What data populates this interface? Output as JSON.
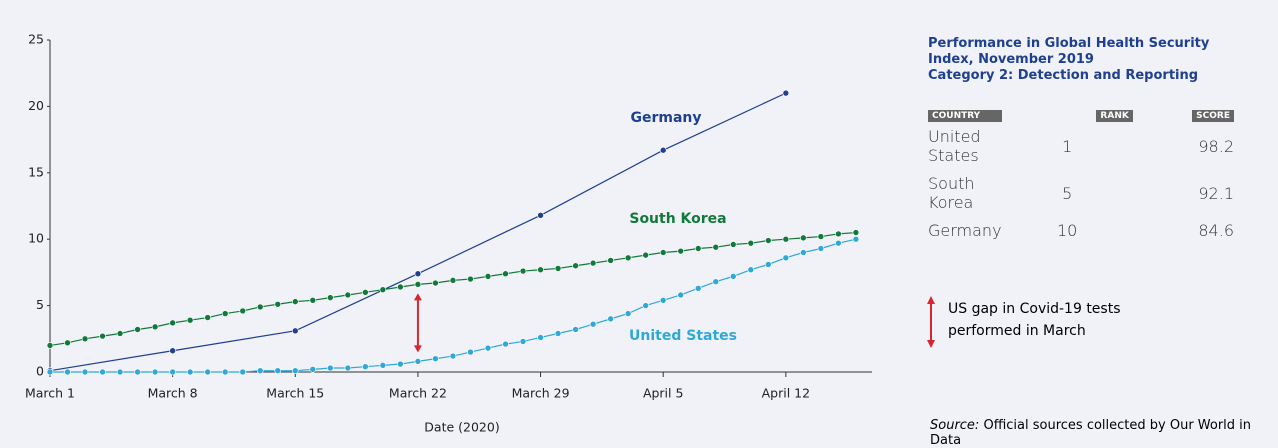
{
  "chart_data": {
    "type": "line",
    "x": [
      "March 1",
      "March 2",
      "March 3",
      "March 4",
      "March 5",
      "March 6",
      "March 7",
      "March 8",
      "March 9",
      "March 10",
      "March 11",
      "March 12",
      "March 13",
      "March 14",
      "March 15",
      "March 16",
      "March 17",
      "March 18",
      "March 19",
      "March 20",
      "March 21",
      "March 22",
      "March 23",
      "March 24",
      "March 25",
      "March 26",
      "March 27",
      "March 28",
      "March 29",
      "March 30",
      "March 31",
      "April 1",
      "April 2",
      "April 3",
      "April 4",
      "April 5",
      "April 6",
      "April 7",
      "April 8",
      "April 9",
      "April 10",
      "April 11",
      "April 12",
      "April 13",
      "April 14",
      "April 15",
      "April 16"
    ],
    "xticks": [
      "March 1",
      "March 8",
      "March 15",
      "March 22",
      "March 29",
      "April 5",
      "April 12"
    ],
    "xlabel": "Date (2020)",
    "ylim": [
      0,
      25
    ],
    "yticks": [
      0,
      5,
      10,
      15,
      20,
      25
    ],
    "series": [
      {
        "name": "Germany",
        "color": "#1f3f8f",
        "x": [
          "March 1",
          "March 8",
          "March 15",
          "March 22",
          "March 29",
          "April 5",
          "April 12"
        ],
        "values": [
          0.1,
          1.6,
          3.1,
          7.4,
          11.8,
          16.7,
          21.0
        ]
      },
      {
        "name": "South Korea",
        "color": "#117a3a",
        "values": [
          2.0,
          2.2,
          2.5,
          2.7,
          2.9,
          3.2,
          3.4,
          3.7,
          3.9,
          4.1,
          4.4,
          4.6,
          4.9,
          5.1,
          5.3,
          5.4,
          5.6,
          5.8,
          6.0,
          6.2,
          6.4,
          6.6,
          6.7,
          6.9,
          7.0,
          7.2,
          7.4,
          7.6,
          7.7,
          7.8,
          8.0,
          8.2,
          8.4,
          8.6,
          8.8,
          9.0,
          9.1,
          9.3,
          9.4,
          9.6,
          9.7,
          9.9,
          10.0,
          10.1,
          10.2,
          10.4,
          10.5
        ]
      },
      {
        "name": "United States",
        "color": "#2fa8d8",
        "values": [
          0.0,
          0.0,
          0.0,
          0.0,
          0.0,
          0.0,
          0.0,
          0.0,
          0.0,
          0.0,
          0.0,
          0.0,
          0.1,
          0.1,
          0.1,
          0.2,
          0.3,
          0.3,
          0.4,
          0.5,
          0.6,
          0.8,
          1.0,
          1.2,
          1.5,
          1.8,
          2.1,
          2.3,
          2.6,
          2.9,
          3.2,
          3.6,
          4.0,
          4.4,
          5.0,
          5.4,
          5.8,
          6.3,
          6.8,
          7.2,
          7.7,
          8.1,
          8.6,
          9.0,
          9.3,
          9.7,
          10.0
        ]
      }
    ],
    "note": "US gap in Covid-19 tests performed in March"
  },
  "table": {
    "title": "Performance in Global Health Security Index, November 2019",
    "subtitle": "Category 2: Detection and Reporting",
    "columns": [
      "COUNTRY",
      "RANK",
      "SCORE"
    ],
    "rows": [
      [
        "United States",
        "1",
        "98.2"
      ],
      [
        "South Korea",
        "5",
        "92.1"
      ],
      [
        "Germany",
        "10",
        "84.6"
      ]
    ]
  },
  "source": {
    "label": "Source:",
    "text": "Official sources collected by Our World in Data"
  }
}
